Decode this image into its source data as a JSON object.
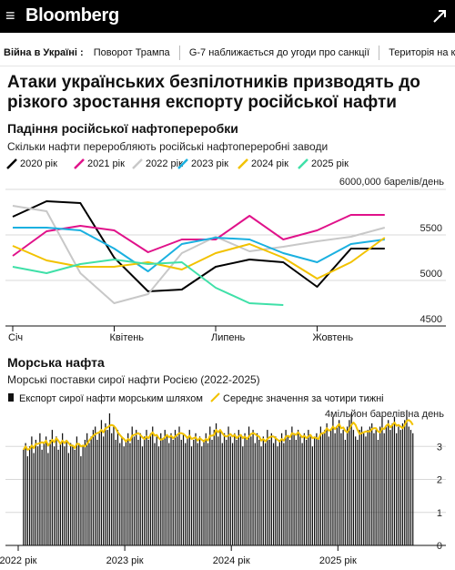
{
  "header": {
    "logo": "Bloomberg",
    "menu_icon": "hamburger-icon",
    "share_icon": "share-icon"
  },
  "ticker": {
    "lead": "Війна в Україні :",
    "items": [
      "Поворот Трампа",
      "G-7 наближається до угоди про санкції",
      "Територія на кону"
    ]
  },
  "headline": "Атаки українських безпілотників призводять до різкого зростання експорту російської нафти",
  "chart_data": [
    {
      "type": "line",
      "title": "Падіння російської нафтопереробки",
      "subtitle": "Скільки нафти переробляють російські нафтопереробні заводи",
      "ylabel": "6000,000 барелів/день",
      "ylim": [
        4500,
        6000
      ],
      "yticks": [
        4500,
        5000,
        5500
      ],
      "xlim": [
        0,
        12
      ],
      "xticks": [
        {
          "x": 0,
          "label": "Січ"
        },
        {
          "x": 3,
          "label": "Квітень"
        },
        {
          "x": 6,
          "label": "Липень"
        },
        {
          "x": 9,
          "label": "Жовтень"
        }
      ],
      "grid": true,
      "series": [
        {
          "name": "2020 рік",
          "color": "#000000",
          "x": [
            0,
            1,
            2,
            3,
            4,
            5,
            6,
            7,
            8,
            9,
            10,
            11
          ],
          "y": [
            5700,
            5870,
            5850,
            5250,
            4880,
            4900,
            5150,
            5230,
            5200,
            4930,
            5350,
            5350
          ]
        },
        {
          "name": "2021 рік",
          "color": "#e0128a",
          "x": [
            0,
            1,
            2,
            3,
            4,
            5,
            6,
            7,
            8,
            9,
            10,
            11
          ],
          "y": [
            5270,
            5540,
            5600,
            5550,
            5310,
            5450,
            5450,
            5710,
            5450,
            5550,
            5720,
            5720
          ]
        },
        {
          "name": "2022 рік",
          "color": "#c8c8c8",
          "x": [
            0,
            1,
            2,
            3,
            4,
            5,
            6,
            7,
            8,
            9,
            10,
            11
          ],
          "y": [
            5820,
            5760,
            5080,
            4750,
            4850,
            5300,
            5480,
            5320,
            5370,
            5430,
            5480,
            5580
          ]
        },
        {
          "name": "2023 рік",
          "color": "#1ab0e0",
          "x": [
            0,
            1,
            2,
            3,
            4,
            5,
            6,
            7,
            8,
            9,
            10,
            11
          ],
          "y": [
            5580,
            5580,
            5550,
            5350,
            5100,
            5400,
            5470,
            5450,
            5300,
            5200,
            5400,
            5450
          ]
        },
        {
          "name": "2024 рік",
          "color": "#f2c200",
          "x": [
            0,
            1,
            2,
            3,
            4,
            5,
            6,
            7,
            8,
            9,
            10,
            11
          ],
          "y": [
            5380,
            5220,
            5150,
            5150,
            5200,
            5120,
            5300,
            5400,
            5250,
            5020,
            5200,
            5470
          ]
        },
        {
          "name": "2025 рік",
          "color": "#3fe0a8",
          "x": [
            0,
            1,
            2,
            3,
            4,
            5,
            6,
            7,
            8
          ],
          "y": [
            5150,
            5080,
            5180,
            5230,
            5180,
            5200,
            4920,
            4750,
            4730
          ]
        }
      ]
    },
    {
      "type": "bar",
      "title": "Морська нафта",
      "subtitle": "Морські поставки сирої нафти Росією (2022-2025)",
      "ylabel": "4мільйон барелів на день",
      "ylim": [
        0,
        4
      ],
      "yticks": [
        0,
        1,
        2,
        3
      ],
      "xlim": [
        2022,
        2025.8
      ],
      "xticks": [
        {
          "x": 2022,
          "label": "2022 рік"
        },
        {
          "x": 2023,
          "label": "2023 рік"
        },
        {
          "x": 2024,
          "label": "2024 рік"
        },
        {
          "x": 2025,
          "label": "2025 рік"
        }
      ],
      "series": [
        {
          "name": "Експорт сирої нафти морським шляхом",
          "color": "#111111",
          "start": 2022.05,
          "step": 0.01923,
          "values": [
            2.9,
            3.1,
            2.7,
            3.0,
            3.3,
            2.8,
            3.2,
            3.0,
            3.4,
            2.9,
            3.1,
            3.3,
            2.8,
            3.2,
            3.5,
            3.0,
            3.3,
            2.9,
            3.1,
            3.4,
            3.0,
            3.2,
            2.8,
            3.1,
            3.0,
            2.9,
            3.3,
            3.1,
            2.7,
            3.0,
            3.2,
            3.4,
            3.1,
            3.3,
            3.5,
            3.6,
            3.2,
            3.4,
            3.8,
            3.3,
            3.7,
            3.5,
            4.0,
            3.4,
            3.6,
            3.2,
            3.5,
            3.1,
            3.3,
            3.0,
            3.2,
            3.4,
            3.1,
            3.6,
            3.3,
            3.5,
            3.2,
            3.4,
            3.0,
            3.3,
            3.5,
            3.2,
            3.4,
            3.6,
            3.1,
            3.3,
            3.0,
            3.4,
            3.2,
            3.5,
            3.3,
            3.1,
            3.4,
            3.2,
            3.5,
            3.3,
            3.6,
            3.2,
            3.4,
            3.1,
            3.3,
            3.5,
            3.0,
            3.2,
            3.4,
            3.1,
            3.3,
            3.0,
            3.2,
            3.4,
            3.1,
            3.6,
            3.2,
            3.5,
            3.7,
            3.3,
            3.5,
            3.1,
            3.4,
            3.2,
            3.6,
            3.3,
            3.1,
            3.4,
            3.2,
            3.5,
            3.3,
            3.0,
            3.4,
            3.2,
            3.6,
            3.3,
            3.5,
            3.1,
            3.4,
            3.2,
            3.0,
            3.3,
            3.1,
            3.5,
            3.2,
            3.4,
            3.1,
            3.3,
            3.0,
            3.2,
            3.4,
            3.1,
            3.5,
            3.3,
            3.2,
            3.6,
            3.4,
            3.2,
            3.5,
            3.3,
            3.1,
            3.4,
            3.2,
            3.5,
            3.3,
            3.0,
            3.3,
            3.4,
            3.2,
            3.6,
            3.4,
            3.5,
            3.7,
            3.3,
            3.5,
            3.9,
            3.4,
            3.6,
            3.8,
            3.4,
            3.5,
            3.2,
            3.6,
            3.8,
            4.0,
            3.5,
            3.3,
            3.2,
            3.5,
            3.6,
            3.4,
            3.3,
            3.5,
            3.6,
            3.7,
            3.4,
            3.5,
            3.2,
            3.6,
            3.9,
            3.4,
            3.6,
            3.8,
            3.5,
            3.7,
            3.9,
            3.4,
            3.6,
            3.5,
            3.7,
            3.8,
            4.1,
            3.6,
            3.5,
            3.4
          ]
        },
        {
          "name": "Середнє значення за чотири тижні",
          "color": "#f2c200"
        }
      ]
    }
  ]
}
